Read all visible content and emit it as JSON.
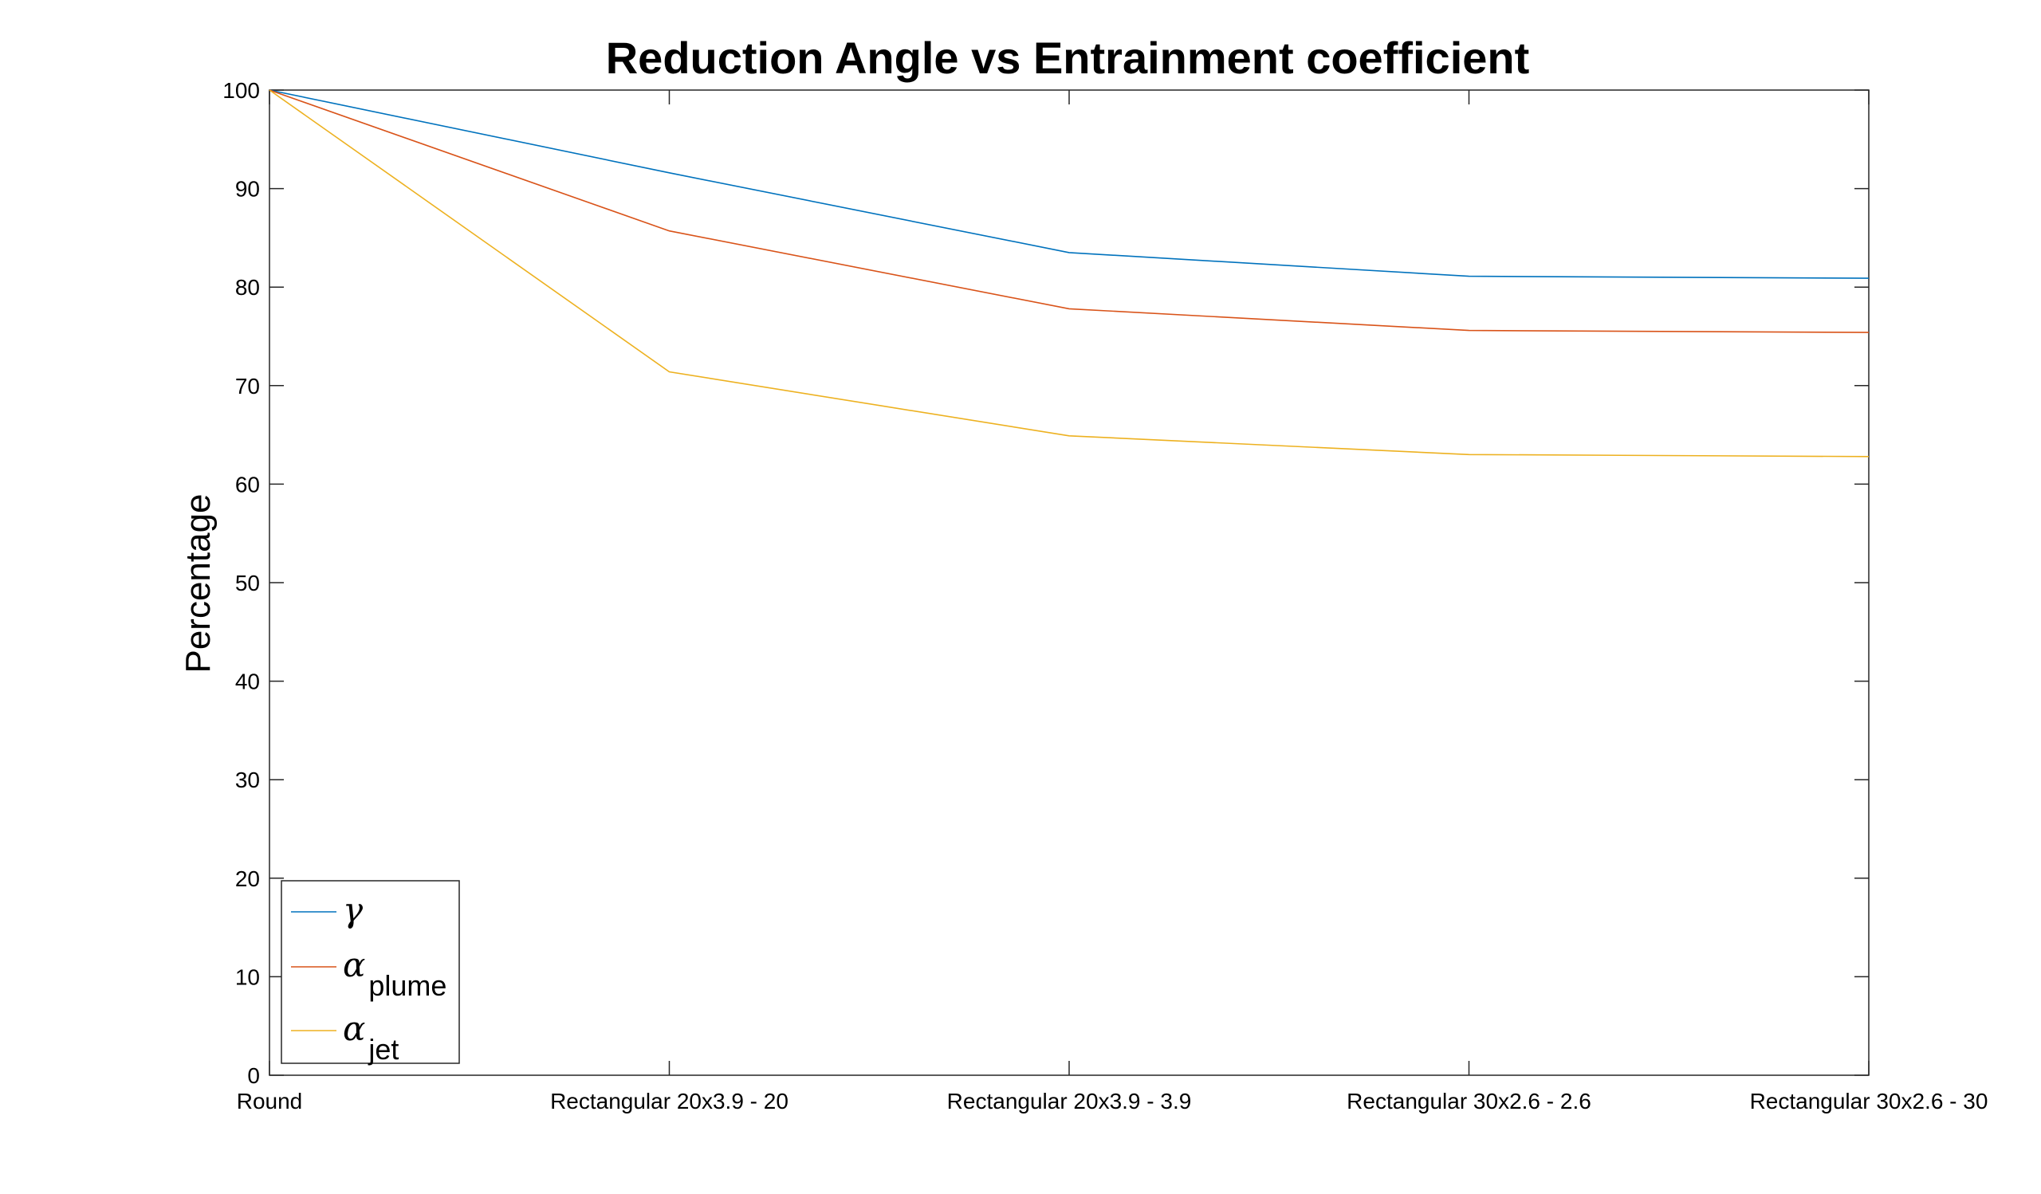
{
  "chart_data": {
    "type": "line",
    "title": "Reduction Angle vs Entrainment coefficient",
    "xlabel": "",
    "ylabel": "Percentage",
    "categories": [
      "Round",
      "Rectangular 20x3.9 - 20",
      "Rectangular 20x3.9 - 3.9",
      "Rectangular 30x2.6 - 2.6",
      "Rectangular 30x2.6 - 30"
    ],
    "ylim": [
      0,
      100
    ],
    "yticks": [
      0,
      10,
      20,
      30,
      40,
      50,
      60,
      70,
      80,
      90,
      100
    ],
    "grid": false,
    "legend_position": "bottom-left",
    "series": [
      {
        "name": "γ",
        "symbol": "γ",
        "subscript": "",
        "color": "#0072BD",
        "values": [
          100,
          91.6,
          83.5,
          81.1,
          80.9
        ]
      },
      {
        "name": "α plume",
        "symbol": "α",
        "subscript": "plume",
        "color": "#D95319",
        "values": [
          100,
          85.7,
          77.8,
          75.6,
          75.4
        ]
      },
      {
        "name": "α jet",
        "symbol": "α",
        "subscript": "jet",
        "color": "#EDB120",
        "values": [
          100,
          71.4,
          64.9,
          63.0,
          62.8
        ]
      }
    ]
  }
}
